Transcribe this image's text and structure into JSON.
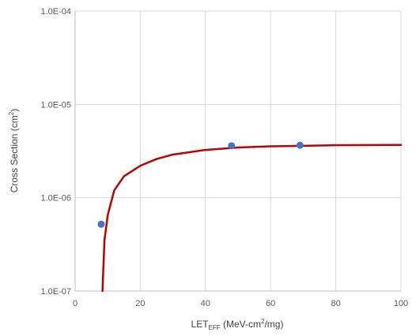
{
  "chart_data": {
    "type": "scatter",
    "title": "",
    "xlabel": {
      "main": "LET",
      "sub": "EFF",
      "rest": " (MeV-cm",
      "sup": "2",
      "tail": "/mg)"
    },
    "ylabel": {
      "main": "Cross Section (cm",
      "sup": "2",
      "tail": ")"
    },
    "x_ticks": [
      0,
      20,
      40,
      60,
      80,
      100
    ],
    "y_ticks": [
      1e-07,
      1e-06,
      1e-05,
      0.0001
    ],
    "y_tick_labels": [
      "1.0E-07",
      "1.0E-06",
      "1.0E-05",
      "1.0E-04"
    ],
    "xlim": [
      0,
      100
    ],
    "ylim": [
      1e-07,
      0.0001
    ],
    "y_scale": "log",
    "grid": true,
    "legend": "none",
    "series": [
      {
        "kind": "points",
        "color": "#4472C4",
        "x": [
          8,
          48,
          69
        ],
        "y": [
          5.2e-07,
          3.6e-06,
          3.65e-06
        ]
      },
      {
        "kind": "line",
        "color": "#C00000",
        "x": [
          8.4,
          9,
          10,
          12,
          15,
          20,
          25,
          30,
          40,
          50,
          60,
          70,
          80,
          90,
          100
        ],
        "y": [
          1e-07,
          3.5e-07,
          6.5e-07,
          1.2e-06,
          1.7e-06,
          2.2e-06,
          2.6e-06,
          2.9e-06,
          3.25e-06,
          3.45e-06,
          3.55e-06,
          3.6e-06,
          3.65e-06,
          3.67e-06,
          3.68e-06
        ]
      }
    ]
  }
}
